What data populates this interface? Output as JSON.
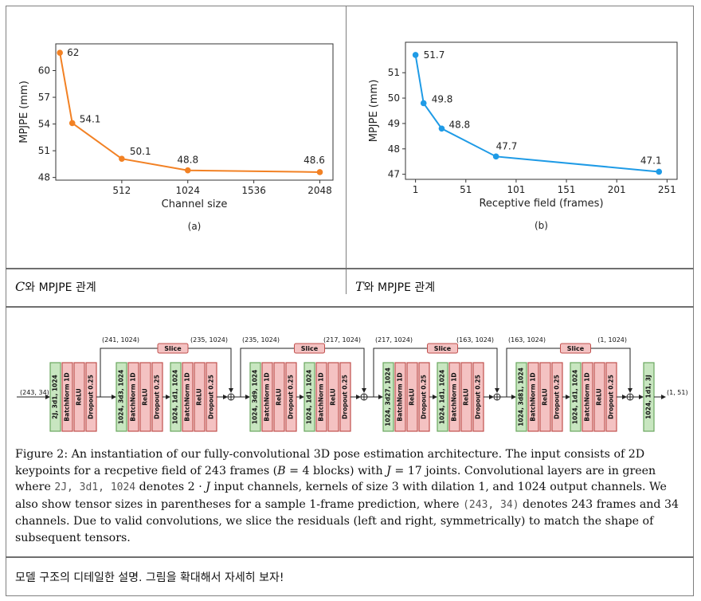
{
  "chart_data": [
    {
      "type": "line",
      "xlabel": "Channel size",
      "ylabel": "MPJPE (mm)",
      "panel": "(a)",
      "x": [
        32,
        128,
        512,
        1024,
        2048
      ],
      "y": [
        62,
        54.1,
        50.1,
        48.8,
        48.6
      ],
      "labels": [
        "62",
        "54.1",
        "50.1",
        "48.8",
        "48.6"
      ],
      "xticks": [
        512,
        1024,
        1536,
        2048
      ],
      "yticks": [
        48,
        51,
        54,
        57,
        60
      ],
      "xlim": [
        0,
        2150
      ],
      "ylim": [
        47.7,
        63
      ],
      "color": "#f28124"
    },
    {
      "type": "line",
      "xlabel": "Receptive field (frames)",
      "ylabel": "MPJPE (mm)",
      "panel": "(b)",
      "x": [
        1,
        9,
        27,
        81,
        243
      ],
      "y": [
        51.7,
        49.8,
        48.8,
        47.7,
        47.1
      ],
      "labels": [
        "51.7",
        "49.8",
        "48.8",
        "47.7",
        "47.1"
      ],
      "xticks": [
        1,
        51,
        101,
        151,
        201,
        251
      ],
      "yticks": [
        47,
        48,
        49,
        50,
        51
      ],
      "xlim": [
        -9,
        261
      ],
      "ylim": [
        46.8,
        52.2
      ],
      "color": "#1f9be6"
    }
  ],
  "captions": {
    "left_var": "C",
    "left_text": "와 MPJPE 관계",
    "right_var": "T",
    "right_text": "와 MPJPE 관계",
    "note": "모델 구조의 디테일한 설명. 그림을 확대해서 자세히 보자!"
  },
  "diagram": {
    "input_shape": "(243, 34)",
    "output_shape": "(1, 51)",
    "first_conv": "2J, 3d1, 1024",
    "final_conv": "1024, 1d1, 3J",
    "layers": [
      "BatchNorm 1D",
      "ReLU",
      "Dropout 0.25"
    ],
    "slice_label": "Slice",
    "blocks": [
      {
        "conv1": "1024, 3d3, 1024",
        "conv2": "1024, 1d1, 1024",
        "in_shape": "(241, 1024)",
        "out_shape": "(235, 1024)"
      },
      {
        "conv1": "1024, 3d9, 1024",
        "conv2": "1024, 1d1, 1024",
        "in_shape": "(235, 1024)",
        "out_shape": "(217, 1024)"
      },
      {
        "conv1": "1024, 3d27, 1024",
        "conv2": "1024, 1d1, 1024",
        "in_shape": "(217, 1024)",
        "out_shape": "(163, 1024)"
      },
      {
        "conv1": "1024, 3d81, 1024",
        "conv2": "1024, 1d1, 1024",
        "in_shape": "(163, 1024)",
        "out_shape": "(1, 1024)"
      }
    ]
  },
  "figure_caption": {
    "t1": "Figure 2: An instantiation of our fully-convolutional 3D pose estimation architecture. The input consists of 2D keypoints for a recpetive field of 243 frames (",
    "m1": "B",
    "t2": " = 4 blocks) with ",
    "m2": "J",
    "t3": " = 17 joints. Convolutional layers are in green where ",
    "code1": "2J, 3d1, 1024",
    "t4": " denotes 2 · ",
    "m3": "J",
    "t5": " input channels, kernels of size 3 with dilation 1, and 1024 output channels. We also show tensor sizes in parentheses for a sample 1-frame prediction, where ",
    "code2": "(243, 34)",
    "t6": " denotes 243 frames and 34 channels. Due to valid convolutions, we slice the residuals (left and right, symmetrically) to match the shape of subsequent tensors."
  }
}
